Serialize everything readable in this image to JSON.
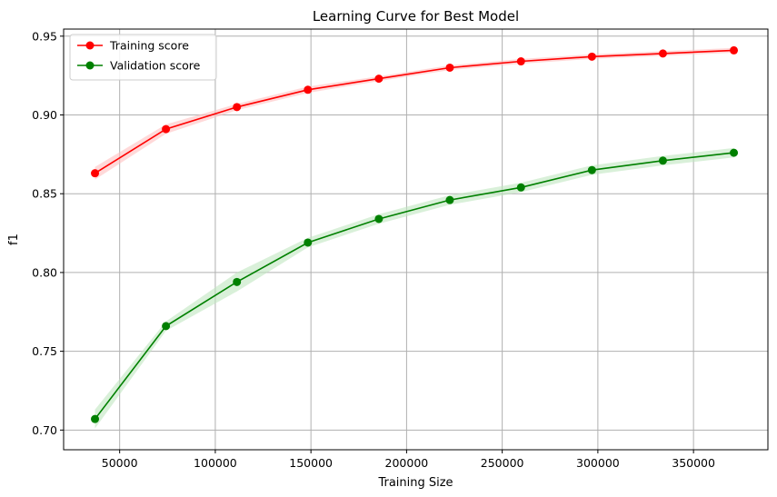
{
  "chart_data": {
    "type": "line",
    "title": "Learning Curve for Best Model",
    "xlabel": "Training Size",
    "ylabel": "f1",
    "xlim": [
      20700,
      388900
    ],
    "ylim": [
      0.6875,
      0.9545
    ],
    "xticks": [
      50000,
      100000,
      150000,
      200000,
      250000,
      300000,
      350000
    ],
    "xtick_labels": [
      "50000",
      "100000",
      "150000",
      "200000",
      "250000",
      "300000",
      "350000"
    ],
    "yticks": [
      0.7,
      0.75,
      0.8,
      0.85,
      0.9,
      0.95
    ],
    "ytick_labels": [
      "0.70",
      "0.75",
      "0.80",
      "0.85",
      "0.90",
      "0.95"
    ],
    "grid": true,
    "legend_position": "top-left",
    "x": [
      37100,
      74200,
      111300,
      148400,
      185500,
      222600,
      259800,
      296900,
      334000,
      371100
    ],
    "series": [
      {
        "name": "Training score",
        "color": "#ff0000",
        "band_color": "#ffc0c0",
        "values": [
          0.863,
          0.891,
          0.905,
          0.916,
          0.923,
          0.93,
          0.934,
          0.937,
          0.939,
          0.941
        ],
        "std": [
          0.004,
          0.003,
          0.002,
          0.002,
          0.0015,
          0.0015,
          0.0015,
          0.0015,
          0.0015,
          0.0015
        ]
      },
      {
        "name": "Validation score",
        "color": "#008000",
        "band_color": "#bfe6bf",
        "values": [
          0.707,
          0.766,
          0.794,
          0.819,
          0.834,
          0.846,
          0.854,
          0.865,
          0.871,
          0.876
        ],
        "std": [
          0.006,
          0.003,
          0.006,
          0.003,
          0.003,
          0.003,
          0.003,
          0.003,
          0.003,
          0.003
        ]
      }
    ]
  }
}
